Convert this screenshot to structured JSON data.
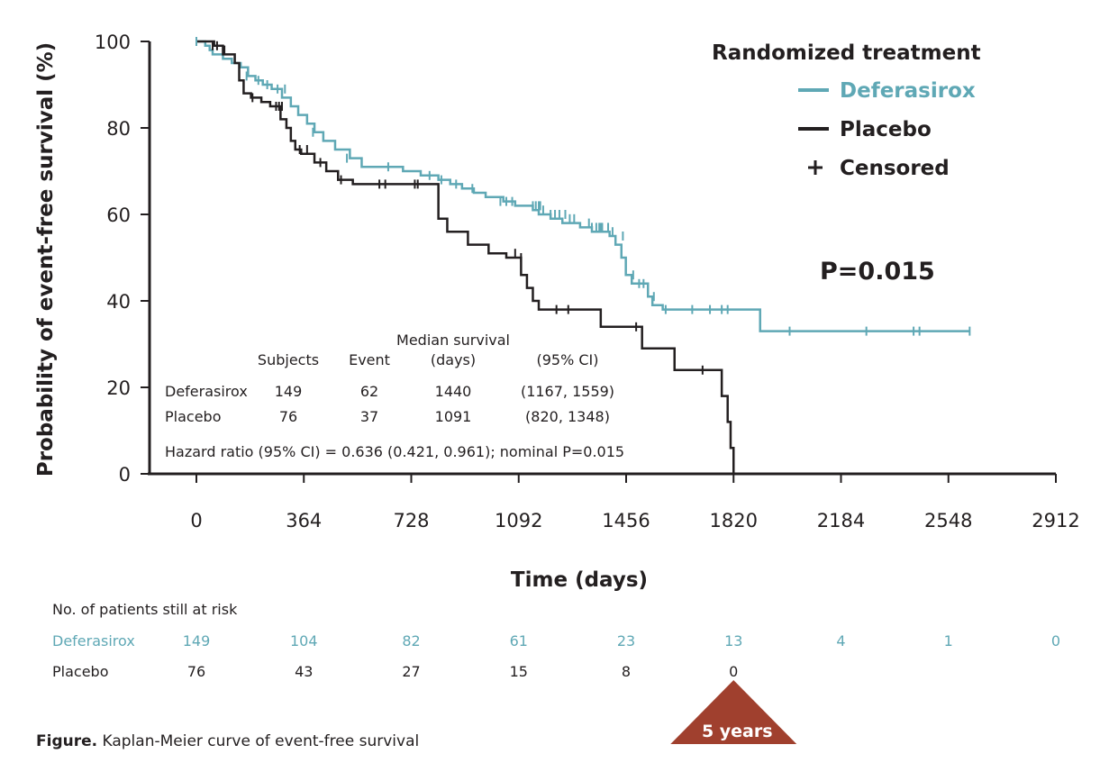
{
  "colors": {
    "deferasirox": "#5fa8b5",
    "placebo": "#231f20",
    "axis": "#231f20",
    "badge": "#a0402e"
  },
  "legend": {
    "title": "Randomized treatment",
    "items": [
      {
        "label": "Deferasirox",
        "symbol": "line",
        "color": "#5fa8b5"
      },
      {
        "label": "Placebo",
        "symbol": "line",
        "color": "#231f20"
      },
      {
        "label": "Censored",
        "symbol": "plus",
        "color": "#231f20"
      }
    ]
  },
  "p_value_label": "P=0.015",
  "stats_table": {
    "header_group": "Median survival",
    "headers": [
      "Subjects",
      "Event",
      "(days)",
      "(95% CI)"
    ],
    "rows": [
      {
        "name": "Deferasirox",
        "subjects": "149",
        "event": "62",
        "median": "1440",
        "ci": "(1167, 1559)"
      },
      {
        "name": "Placebo",
        "subjects": "76",
        "event": "37",
        "median": "1091",
        "ci": "(820, 1348)"
      }
    ],
    "hazard": "Hazard ratio (95% CI) = 0.636 (0.421, 0.961); nominal P=0.015"
  },
  "risk_table": {
    "title": "No. of patients still at risk",
    "rows": [
      {
        "name": "Deferasirox",
        "color": "#5fa8b5",
        "values": [
          "149",
          "104",
          "82",
          "61",
          "23",
          "13",
          "4",
          "1",
          "0"
        ]
      },
      {
        "name": "Placebo",
        "color": "#231f20",
        "values": [
          "76",
          "43",
          "27",
          "15",
          "8",
          "0",
          "",
          "",
          ""
        ]
      }
    ]
  },
  "caption": {
    "bold": "Figure.",
    "text": " Kaplan-Meier curve of event-free survival"
  },
  "badge": {
    "label": "5 years",
    "at_x": 1820
  },
  "chart_data": {
    "type": "line",
    "title": "",
    "xlabel": "Time (days)",
    "ylabel": "Probability of event-free survival (%)",
    "xlim": [
      0,
      2912
    ],
    "ylim": [
      0,
      100
    ],
    "xticks": [
      0,
      364,
      728,
      1092,
      1456,
      1820,
      2184,
      2548,
      2912
    ],
    "yticks": [
      0,
      20,
      40,
      60,
      80,
      100
    ],
    "grid": false,
    "legend_position": "top-right",
    "step": true,
    "series": [
      {
        "name": "Deferasirox",
        "color": "#5fa8b5",
        "x": [
          0,
          30,
          45,
          55,
          90,
          120,
          150,
          175,
          200,
          225,
          255,
          290,
          320,
          345,
          375,
          400,
          430,
          470,
          520,
          560,
          600,
          700,
          760,
          820,
          860,
          900,
          940,
          980,
          1040,
          1080,
          1110,
          1140,
          1160,
          1180,
          1200,
          1240,
          1300,
          1340,
          1380,
          1400,
          1420,
          1440,
          1455,
          1475,
          1500,
          1530,
          1545,
          1580,
          1680,
          1780,
          1910,
          2620
        ],
        "y": [
          100,
          99,
          98,
          97,
          96,
          95,
          94,
          92,
          91,
          90,
          89,
          87,
          85,
          83,
          81,
          79,
          77,
          75,
          73,
          71,
          71,
          70,
          69,
          68,
          67,
          66,
          65,
          64,
          63,
          62,
          62,
          61,
          60,
          60,
          59,
          58,
          57,
          56,
          56,
          55,
          53,
          50,
          46,
          44,
          44,
          41,
          39,
          38,
          38,
          38,
          33,
          33
        ]
      },
      {
        "name": "Placebo",
        "color": "#231f20",
        "x": [
          0,
          60,
          90,
          130,
          145,
          160,
          185,
          220,
          250,
          285,
          305,
          320,
          335,
          355,
          400,
          440,
          480,
          530,
          600,
          770,
          820,
          850,
          920,
          990,
          1050,
          1090,
          1100,
          1120,
          1140,
          1160,
          1370,
          1510,
          1620,
          1780,
          1800,
          1810,
          1820
        ],
        "y": [
          100,
          99,
          97,
          95,
          91,
          88,
          87,
          86,
          85,
          82,
          80,
          77,
          75,
          74,
          72,
          70,
          68,
          67,
          67,
          67,
          59,
          56,
          53,
          51,
          50,
          50,
          46,
          43,
          40,
          38,
          34,
          29,
          24,
          18,
          12,
          6,
          0
        ]
      }
    ],
    "censored": [
      {
        "series": "Deferasirox",
        "x": [
          0,
          170,
          210,
          240,
          275,
          300,
          395,
          510,
          650,
          790,
          830,
          880,
          935,
          1030,
          1050,
          1070,
          1140,
          1150,
          1160,
          1165,
          1175,
          1200,
          1215,
          1230,
          1250,
          1265,
          1280,
          1330,
          1340,
          1355,
          1365,
          1370,
          1375,
          1395,
          1410,
          1445,
          1480,
          1500,
          1515,
          1550,
          1590,
          1680,
          1740,
          1780,
          1800,
          2010,
          2270,
          2430,
          2450,
          2620
        ],
        "y": [
          100,
          92,
          91,
          90,
          89,
          89,
          79,
          73,
          71,
          69,
          68,
          67,
          66,
          63,
          63,
          63,
          62,
          62,
          62,
          62,
          61,
          60,
          60,
          60,
          60,
          59,
          59,
          58,
          57,
          57,
          57,
          57,
          57,
          57,
          56,
          55,
          46,
          44,
          44,
          41,
          38,
          38,
          38,
          38,
          38,
          33,
          33,
          33,
          33,
          33
        ]
      },
      {
        "series": "Placebo",
        "x": [
          55,
          70,
          95,
          190,
          270,
          280,
          290,
          350,
          375,
          420,
          490,
          620,
          640,
          740,
          750,
          1080,
          1100,
          1220,
          1260,
          1490,
          1715
        ],
        "y": [
          99,
          99,
          98,
          87,
          85,
          85,
          85,
          75,
          75,
          72,
          68,
          67,
          67,
          67,
          67,
          51,
          50,
          38,
          38,
          34,
          24
        ]
      }
    ]
  }
}
